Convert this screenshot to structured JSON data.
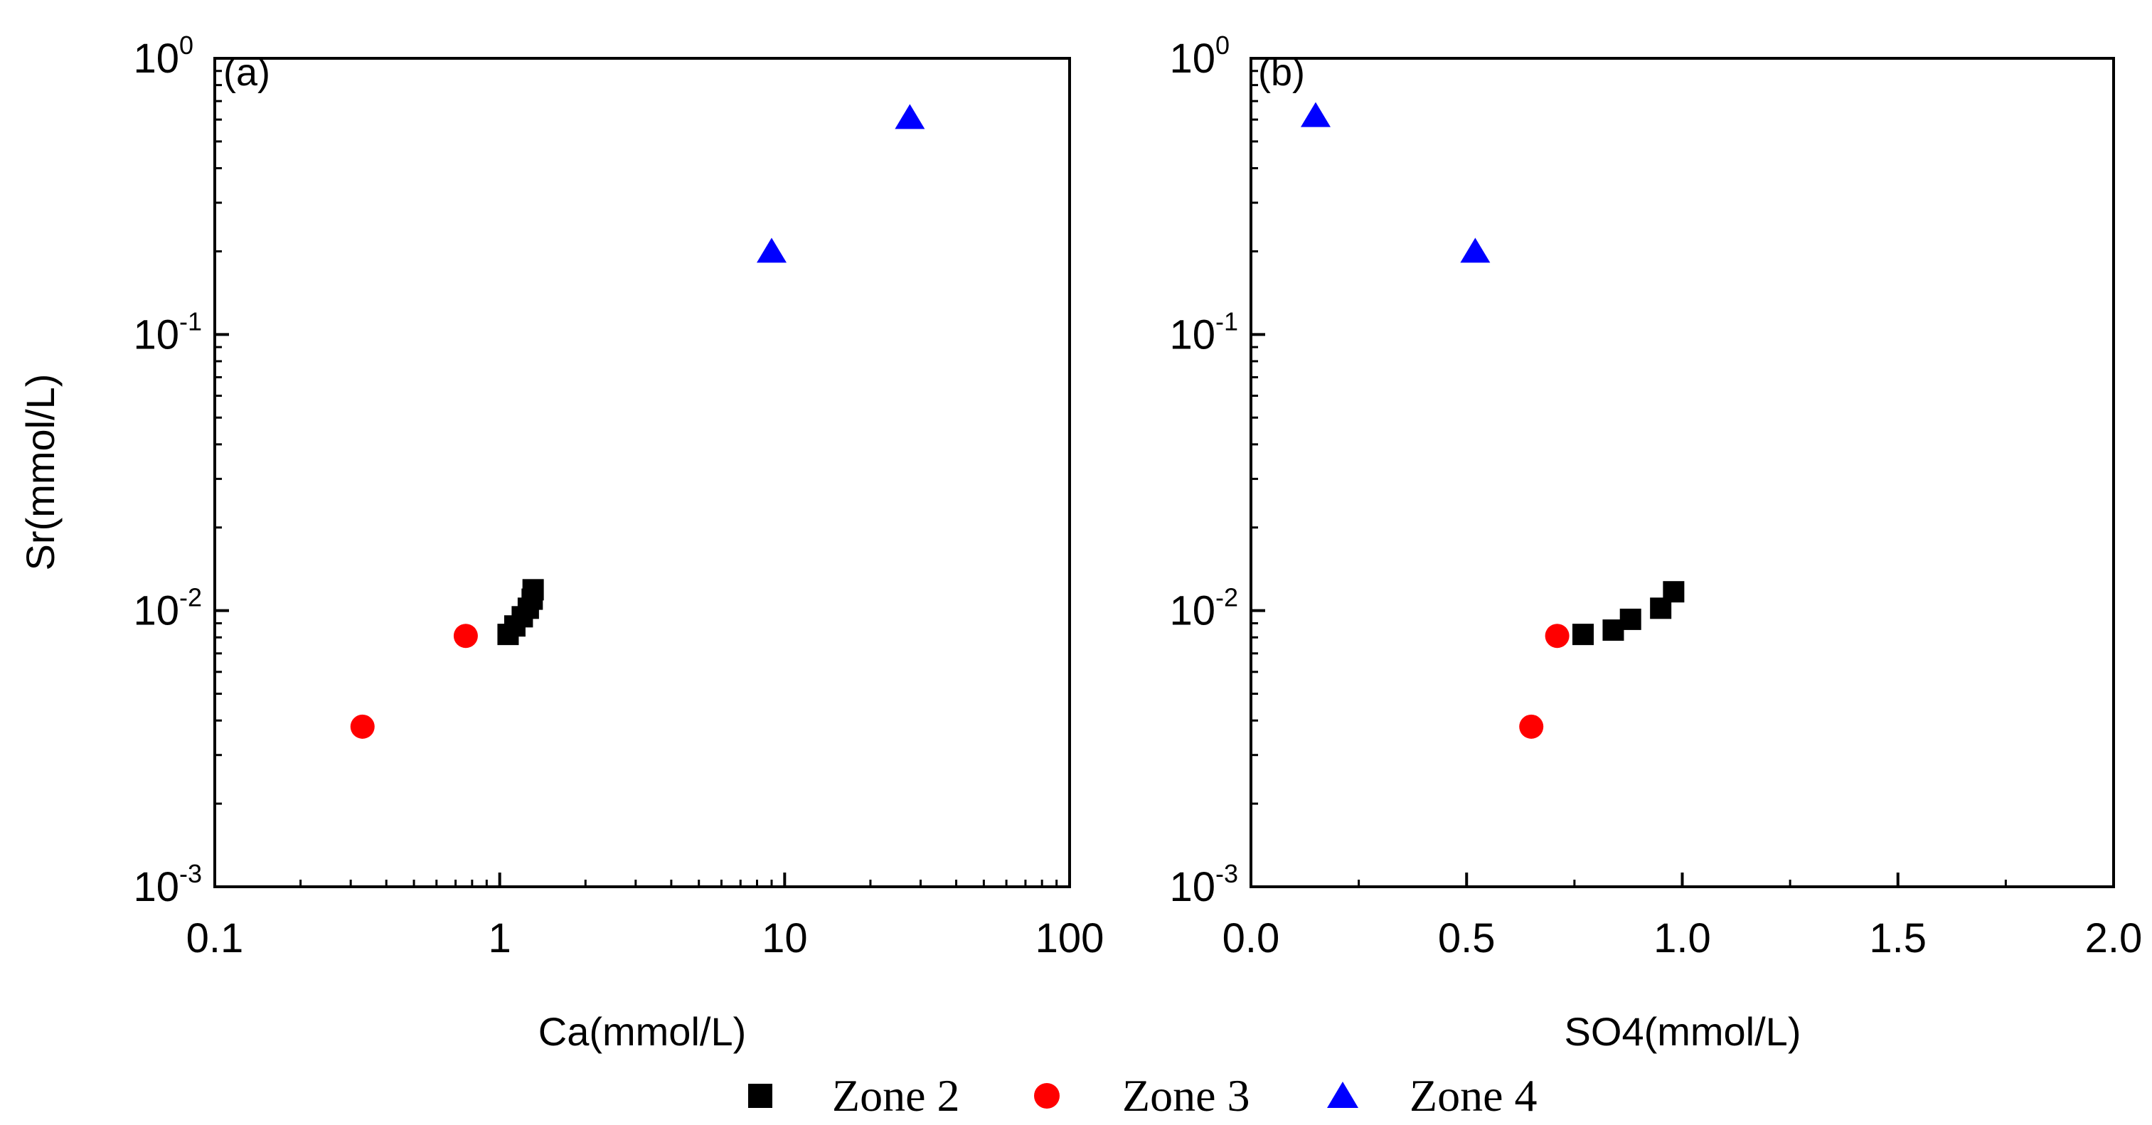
{
  "chart_data": [
    {
      "type": "scatter",
      "panel_label": "(a)",
      "xlabel": "Ca(mmol/L)",
      "ylabel": "Sr(mmol/L)",
      "xscale": "log",
      "yscale": "log",
      "xlim": [
        0.1,
        100
      ],
      "ylim": [
        0.001,
        1
      ],
      "x_ticks": [
        "0.1",
        "1",
        "10",
        "100"
      ],
      "y_ticks": [
        {
          "base": "10",
          "exp": "-3",
          "value": 0.001
        },
        {
          "base": "10",
          "exp": "-2",
          "value": 0.01
        },
        {
          "base": "10",
          "exp": "-1",
          "value": 0.1
        },
        {
          "base": "10",
          "exp": "0",
          "value": 1
        }
      ],
      "series": [
        {
          "name": "Zone 2",
          "marker": "square",
          "color": "#000000",
          "points": [
            [
              1.07,
              0.0082
            ],
            [
              1.13,
              0.0088
            ],
            [
              1.2,
              0.0095
            ],
            [
              1.26,
              0.0102
            ],
            [
              1.3,
              0.011
            ],
            [
              1.31,
              0.0119
            ]
          ]
        },
        {
          "name": "Zone 3",
          "marker": "circle",
          "color": "#ff0000",
          "points": [
            [
              0.33,
              0.0038
            ],
            [
              0.76,
              0.0081
            ]
          ]
        },
        {
          "name": "Zone 4",
          "marker": "triangle",
          "color": "#0000ff",
          "points": [
            [
              9.0,
              0.2
            ],
            [
              27.5,
              0.61
            ]
          ]
        }
      ]
    },
    {
      "type": "scatter",
      "panel_label": "(b)",
      "xlabel": "SO4(mmol/L)",
      "ylabel": "",
      "xscale": "linear",
      "yscale": "log",
      "xlim": [
        0,
        2
      ],
      "ylim": [
        0.001,
        1
      ],
      "x_ticks": [
        "0.0",
        "0.5",
        "1.0",
        "1.5",
        "2.0"
      ],
      "y_ticks": [
        {
          "base": "10",
          "exp": "-3",
          "value": 0.001
        },
        {
          "base": "10",
          "exp": "-2",
          "value": 0.01
        },
        {
          "base": "10",
          "exp": "-1",
          "value": 0.1
        },
        {
          "base": "10",
          "exp": "0",
          "value": 1
        }
      ],
      "series": [
        {
          "name": "Zone 2",
          "marker": "square",
          "color": "#000000",
          "points": [
            [
              0.77,
              0.0082
            ],
            [
              0.84,
              0.0085
            ],
            [
              0.88,
              0.0093
            ],
            [
              0.95,
              0.0102
            ],
            [
              0.98,
              0.0117
            ]
          ]
        },
        {
          "name": "Zone 3",
          "marker": "circle",
          "color": "#ff0000",
          "points": [
            [
              0.65,
              0.0038
            ],
            [
              0.71,
              0.0081
            ]
          ]
        },
        {
          "name": "Zone 4",
          "marker": "triangle",
          "color": "#0000ff",
          "points": [
            [
              0.15,
              0.62
            ],
            [
              0.52,
              0.2
            ]
          ]
        }
      ]
    }
  ],
  "legend": [
    {
      "label": "Zone 2",
      "marker": "square",
      "color": "#000000"
    },
    {
      "label": "Zone 3",
      "marker": "circle",
      "color": "#ff0000"
    },
    {
      "label": "Zone 4",
      "marker": "triangle",
      "color": "#0000ff"
    }
  ]
}
